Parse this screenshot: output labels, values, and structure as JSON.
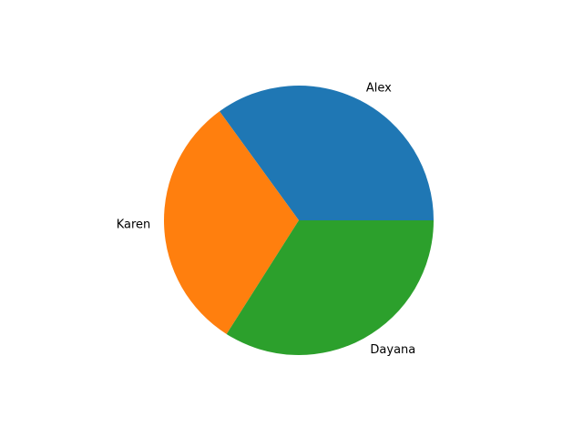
{
  "chart_data": {
    "type": "pie",
    "title": "",
    "start_angle_deg": 0,
    "direction": "counterclockwise",
    "legend": "none",
    "slices": [
      {
        "label": "Alex",
        "value": 35,
        "color": "#1f77b4"
      },
      {
        "label": "Karen",
        "value": 31,
        "color": "#ff7f0e"
      },
      {
        "label": "Dayana",
        "value": 34,
        "color": "#2ca02c"
      }
    ]
  }
}
